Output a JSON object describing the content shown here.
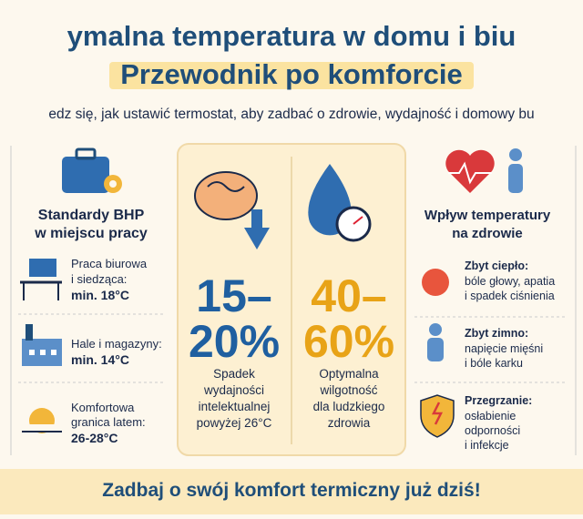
{
  "header": {
    "title_line1": "ymalna temperatura w domu i biu",
    "title_line2": "Przewodnik po komforcie",
    "subtitle": "edz się, jak ustawić termostat, aby zadbać o zdrowie, wydajność i domowy bu"
  },
  "workplace": {
    "title": [
      "Standardy BHP",
      "w miejscu pracy"
    ],
    "items": [
      {
        "label": [
          "Praca biurowa",
          "i siedząca:"
        ],
        "value": "min. 18°C"
      },
      {
        "label": [
          "Hale i magazyny:"
        ],
        "value": "min. 14°C"
      },
      {
        "label": [
          "Komfortowa",
          "granica latem:"
        ],
        "value": "26-28°C"
      }
    ]
  },
  "productivity": {
    "value": [
      "15–",
      "20%"
    ],
    "text": [
      "Spadek",
      "wydajności",
      "intelektualnej",
      "powyżej 26°C"
    ]
  },
  "humidity": {
    "value": [
      "40–",
      "60%"
    ],
    "text": [
      "Optymalna",
      "wilgotność",
      "dla ludzkiego",
      "zdrowia"
    ]
  },
  "health": {
    "title": [
      "Wpływ temperatury",
      "na zdrowie"
    ],
    "items": [
      {
        "label": "Zbyt ciepło:",
        "text": [
          "bóle głowy, apatia",
          "i spadek ciśnienia"
        ]
      },
      {
        "label": "Zbyt zimno:",
        "text": [
          "napięcie mięśni",
          "i bóle karku"
        ]
      },
      {
        "label": "Przegrzanie:",
        "text": [
          "osłabienie",
          "odporności",
          "i infekcje"
        ]
      }
    ]
  },
  "footer": {
    "text": "Zadbaj o swój komfort termiczny już dziś!"
  }
}
